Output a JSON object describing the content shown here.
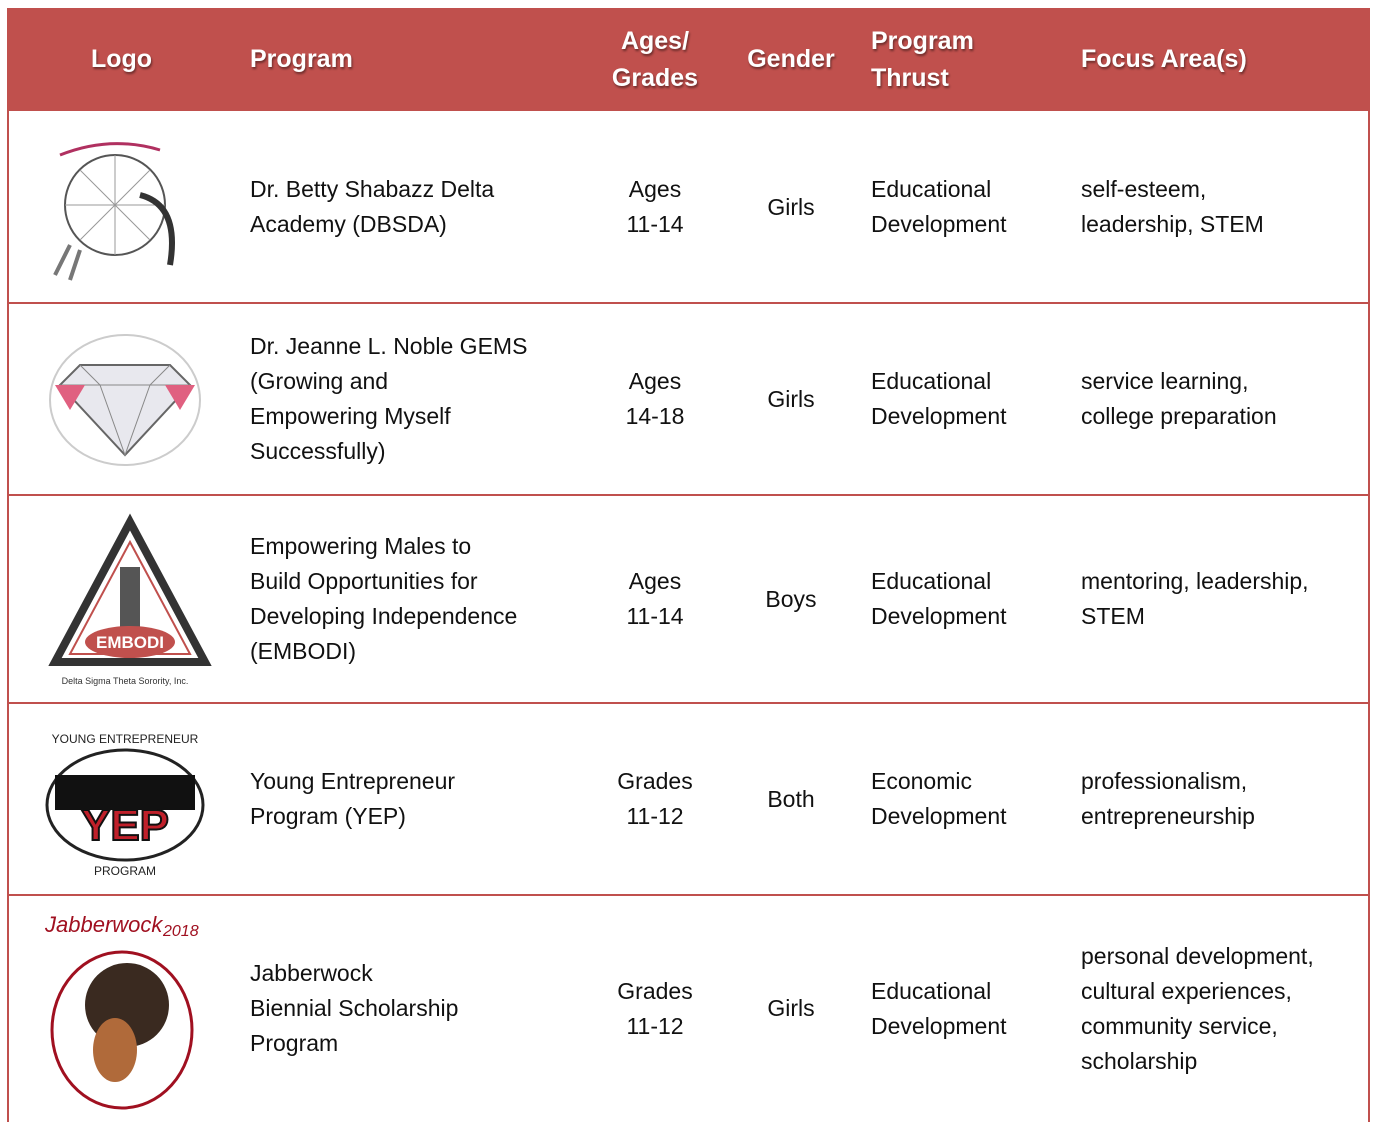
{
  "header": [
    [
      "Logo"
    ],
    [
      "Program"
    ],
    [
      "Ages/",
      "Grades"
    ],
    [
      "Gender"
    ],
    [
      "Program",
      "Thrust"
    ],
    [
      "Focus Area(s)"
    ]
  ],
  "rows": [
    {
      "logo_text": [],
      "cells": [
        [
          "Dr. Betty Shabazz Delta",
          "Academy (DBSDA)"
        ],
        [
          "Ages",
          "11-14"
        ],
        [
          "Girls"
        ],
        [
          "Educational",
          "Development"
        ],
        [
          "self-esteem,",
          "leadership, STEM"
        ]
      ]
    },
    {
      "logo_text": [],
      "cells": [
        [
          "Dr. Jeanne L. Noble GEMS",
          "(Growing and",
          "Empowering Myself",
          "Successfully)"
        ],
        [
          "Ages",
          "14-18"
        ],
        [
          "Girls"
        ],
        [
          "Educational",
          "Development"
        ],
        [
          "service learning,",
          "college preparation"
        ]
      ]
    },
    {
      "logo_text": [
        "EMBODI",
        "Delta Sigma Theta Sorority, Inc."
      ],
      "cells": [
        [
          "Empowering Males to",
          "Build Opportunities for",
          "Developing Independence",
          "(EMBODI)"
        ],
        [
          "Ages",
          "11-14"
        ],
        [
          "Boys"
        ],
        [
          "Educational",
          "Development"
        ],
        [
          "mentoring, leadership,",
          "STEM"
        ]
      ]
    },
    {
      "logo_text": [
        "YOUNG ENTREPRENEUR",
        "YEP",
        "PROGRAM"
      ],
      "cells": [
        [
          "Young Entrepreneur",
          "Program (YEP)"
        ],
        [
          "Grades",
          "11-12"
        ],
        [
          "Both"
        ],
        [
          "Economic",
          "Development"
        ],
        [
          "professionalism,",
          "entrepreneurship"
        ]
      ]
    },
    {
      "logo_text": [
        "Jabberwock",
        "2018"
      ],
      "cells": [
        [
          "Jabberwock",
          "Biennial Scholarship",
          "Program"
        ],
        [
          "Grades",
          "11-12"
        ],
        [
          "Girls"
        ],
        [
          "Educational",
          "Development"
        ],
        [
          "personal development,",
          "cultural experiences,",
          "community service,",
          "scholarship"
        ]
      ]
    }
  ]
}
